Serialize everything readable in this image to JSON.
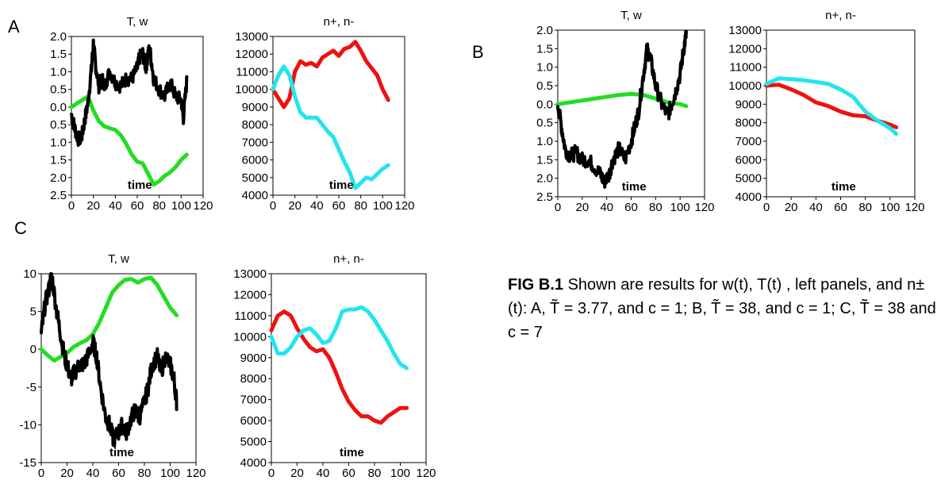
{
  "caption": {
    "label": "FIG B.1",
    "text": "Shown are results for w(t), T(t) , left panels, and n±(t): A, T̃ = 3.77, and c = 1; B, T̃ = 38, and c = 1; C, T̃ = 38 and c = 7"
  },
  "colors": {
    "w": "#000000",
    "T": "#22dd22",
    "n_plus": "#ee1111",
    "n_minus": "#22e5ee"
  },
  "chart_data": [
    {
      "type": "line",
      "panel": "A",
      "title": "T, w",
      "xlabel": "time",
      "xlim": [
        0,
        120
      ],
      "xticks": [
        0,
        20,
        40,
        60,
        80,
        100,
        120
      ],
      "ylim": [
        -2.5,
        2.0
      ],
      "yticks": [
        2.0,
        1.5,
        1.0,
        0.5,
        0.0,
        -0.5,
        -1.0,
        -1.5,
        -2.0,
        -2.5
      ],
      "ytick_labels": [
        "2.0",
        "1.5",
        "1.0",
        "0.5",
        "0.0",
        "0.5",
        "1.0",
        "1.5",
        "2.0",
        "2.5"
      ],
      "series": [
        {
          "key": "T",
          "x": [
            0,
            5,
            10,
            15,
            20,
            25,
            30,
            35,
            40,
            45,
            50,
            55,
            60,
            65,
            70,
            75,
            80,
            85,
            90,
            95,
            100,
            105
          ],
          "y": [
            0,
            0.1,
            0.2,
            0.3,
            -0.1,
            -0.4,
            -0.55,
            -0.6,
            -0.65,
            -0.8,
            -1.05,
            -1.35,
            -1.55,
            -1.6,
            -1.9,
            -2.2,
            -2.1,
            -1.95,
            -1.85,
            -1.7,
            -1.5,
            -1.35
          ]
        },
        {
          "key": "w",
          "noisy": true,
          "x": [
            0,
            3,
            6,
            9,
            12,
            15,
            18,
            20,
            22,
            25,
            28,
            30,
            35,
            40,
            45,
            50,
            55,
            60,
            62,
            65,
            68,
            70,
            72,
            75,
            80,
            85,
            90,
            95,
            100,
            102,
            105
          ],
          "y": [
            -0.2,
            -0.6,
            -0.9,
            -0.9,
            -0.4,
            0.1,
            1.0,
            1.8,
            1.2,
            0.6,
            0.8,
            0.6,
            1.0,
            0.7,
            0.6,
            0.8,
            0.8,
            1.1,
            1.4,
            1.5,
            1.1,
            1.6,
            1.5,
            0.8,
            0.5,
            0.3,
            0.7,
            0.3,
            0.2,
            -0.3,
            0.7
          ]
        }
      ]
    },
    {
      "type": "line",
      "panel": "A",
      "title": "n+, n-",
      "xlabel": "time",
      "xlim": [
        0,
        120
      ],
      "xticks": [
        0,
        20,
        40,
        60,
        80,
        100,
        120
      ],
      "ylim": [
        4000,
        13000
      ],
      "yticks": [
        13000,
        12000,
        11000,
        10000,
        9000,
        8000,
        7000,
        6000,
        5000,
        4000
      ],
      "series": [
        {
          "key": "n_plus",
          "x": [
            0,
            5,
            10,
            15,
            20,
            25,
            30,
            35,
            40,
            45,
            50,
            55,
            60,
            65,
            70,
            75,
            80,
            85,
            90,
            95,
            100,
            105
          ],
          "y": [
            10000,
            9500,
            9000,
            9500,
            11000,
            11600,
            11400,
            11500,
            11300,
            11800,
            12000,
            12200,
            11900,
            12300,
            12400,
            12700,
            12200,
            11600,
            11200,
            10800,
            10000,
            9400
          ]
        },
        {
          "key": "n_minus",
          "x": [
            0,
            5,
            10,
            15,
            20,
            25,
            30,
            35,
            40,
            45,
            50,
            55,
            60,
            65,
            70,
            75,
            80,
            85,
            90,
            95,
            100,
            105
          ],
          "y": [
            10000,
            10800,
            11300,
            10800,
            9600,
            8700,
            8400,
            8400,
            8400,
            8000,
            7600,
            7300,
            6600,
            5900,
            5300,
            4400,
            4700,
            5000,
            4900,
            5200,
            5500,
            5700
          ]
        }
      ]
    },
    {
      "type": "line",
      "panel": "B",
      "title": "T, w",
      "xlabel": "time",
      "xlim": [
        0,
        120
      ],
      "xticks": [
        0,
        20,
        40,
        60,
        80,
        100,
        120
      ],
      "ylim": [
        -2.5,
        2.0
      ],
      "yticks": [
        2.0,
        1.5,
        1.0,
        0.5,
        0.0,
        -0.5,
        -1.0,
        -1.5,
        -2.0,
        -2.5
      ],
      "ytick_labels": [
        "2.0",
        "1.5",
        "1.0",
        "0.5",
        "0.0",
        "0.5",
        "1.0",
        "1.5",
        "2.0",
        "2.5"
      ],
      "series": [
        {
          "key": "T",
          "x": [
            0,
            10,
            20,
            30,
            40,
            50,
            60,
            70,
            80,
            90,
            100,
            105
          ],
          "y": [
            0,
            0.05,
            0.1,
            0.15,
            0.2,
            0.25,
            0.28,
            0.25,
            0.15,
            0.05,
            0.0,
            -0.05
          ]
        },
        {
          "key": "w",
          "noisy": true,
          "x": [
            0,
            3,
            6,
            10,
            15,
            20,
            25,
            30,
            35,
            38,
            42,
            45,
            50,
            55,
            60,
            63,
            66,
            70,
            73,
            76,
            80,
            85,
            90,
            93,
            96,
            100,
            103,
            105
          ],
          "y": [
            0,
            -0.6,
            -1.2,
            -1.4,
            -1.3,
            -1.5,
            -1.5,
            -1.7,
            -1.9,
            -2.1,
            -1.9,
            -1.5,
            -1.2,
            -1.5,
            -1.0,
            -0.6,
            -0.2,
            0.8,
            1.5,
            1.2,
            0.5,
            0.0,
            -0.3,
            0.0,
            0.3,
            0.8,
            1.5,
            1.9
          ]
        }
      ]
    },
    {
      "type": "line",
      "panel": "B",
      "title": "n+, n-",
      "xlabel": "time",
      "xlim": [
        0,
        120
      ],
      "xticks": [
        0,
        20,
        40,
        60,
        80,
        100,
        120
      ],
      "ylim": [
        4000,
        13000
      ],
      "yticks": [
        13000,
        12000,
        11000,
        10000,
        9000,
        8000,
        7000,
        6000,
        5000,
        4000
      ],
      "series": [
        {
          "key": "n_plus",
          "x": [
            0,
            10,
            20,
            30,
            40,
            50,
            60,
            70,
            80,
            90,
            100,
            105
          ],
          "y": [
            10000,
            10050,
            9800,
            9500,
            9100,
            8900,
            8600,
            8400,
            8350,
            8100,
            7900,
            7750
          ]
        },
        {
          "key": "n_minus",
          "x": [
            0,
            10,
            20,
            30,
            40,
            50,
            60,
            70,
            80,
            90,
            100,
            105
          ],
          "y": [
            10100,
            10400,
            10350,
            10300,
            10200,
            10100,
            9800,
            9400,
            8600,
            8100,
            7700,
            7400
          ]
        }
      ]
    },
    {
      "type": "line",
      "panel": "C",
      "title": "T, w",
      "xlabel": "time",
      "xlim": [
        0,
        120
      ],
      "xticks": [
        0,
        20,
        40,
        60,
        80,
        100,
        120
      ],
      "ylim": [
        -15,
        10
      ],
      "yticks": [
        10,
        5,
        0,
        -5,
        -10,
        -15
      ],
      "series": [
        {
          "key": "T",
          "x": [
            0,
            5,
            10,
            15,
            20,
            25,
            30,
            35,
            40,
            45,
            50,
            55,
            60,
            65,
            70,
            75,
            80,
            85,
            90,
            95,
            100,
            105
          ],
          "y": [
            0,
            -0.8,
            -1.5,
            -1.0,
            -0.5,
            0.3,
            0.8,
            1.2,
            2.0,
            3.5,
            5.5,
            7.5,
            8.5,
            9.2,
            9.3,
            8.8,
            9.3,
            9.5,
            8.5,
            7.0,
            5.5,
            4.5
          ]
        },
        {
          "key": "w",
          "noisy": true,
          "x": [
            0,
            3,
            6,
            8,
            12,
            15,
            18,
            20,
            23,
            26,
            30,
            33,
            36,
            40,
            43,
            46,
            50,
            53,
            56,
            60,
            63,
            66,
            70,
            73,
            76,
            80,
            83,
            86,
            90,
            93,
            96,
            100,
            103,
            105
          ],
          "y": [
            2,
            6,
            8,
            10,
            5,
            2,
            -1,
            -2,
            -4,
            -3,
            -2,
            -2,
            -1,
            1,
            -1,
            -5,
            -9,
            -10,
            -12,
            -11,
            -10,
            -11,
            -9,
            -8,
            -9,
            -7,
            -5,
            -2,
            -1,
            -3,
            -1,
            -2,
            -4,
            -7
          ]
        }
      ]
    },
    {
      "type": "line",
      "panel": "C",
      "title": "n+, n-",
      "xlabel": "time",
      "xlim": [
        0,
        120
      ],
      "xticks": [
        0,
        20,
        40,
        60,
        80,
        100,
        120
      ],
      "ylim": [
        4000,
        13000
      ],
      "yticks": [
        13000,
        12000,
        11000,
        10000,
        9000,
        8000,
        7000,
        6000,
        5000,
        4000
      ],
      "series": [
        {
          "key": "n_plus",
          "x": [
            0,
            5,
            10,
            15,
            20,
            25,
            30,
            35,
            40,
            45,
            50,
            55,
            60,
            65,
            70,
            75,
            80,
            85,
            90,
            95,
            100,
            105
          ],
          "y": [
            10300,
            11000,
            11200,
            11000,
            10400,
            9900,
            9500,
            9300,
            9400,
            9000,
            8300,
            7500,
            6900,
            6500,
            6200,
            6200,
            6000,
            5900,
            6200,
            6400,
            6600,
            6600
          ]
        },
        {
          "key": "n_minus",
          "x": [
            0,
            5,
            10,
            15,
            20,
            25,
            30,
            35,
            40,
            45,
            50,
            55,
            60,
            65,
            70,
            75,
            80,
            85,
            90,
            95,
            100,
            105
          ],
          "y": [
            10000,
            9200,
            9200,
            9500,
            10000,
            10300,
            10400,
            10100,
            9700,
            9800,
            10400,
            11200,
            11300,
            11300,
            11400,
            11200,
            10800,
            10300,
            9800,
            9200,
            8700,
            8500
          ]
        }
      ]
    }
  ],
  "panel_labels": [
    "A",
    "B",
    "C"
  ]
}
